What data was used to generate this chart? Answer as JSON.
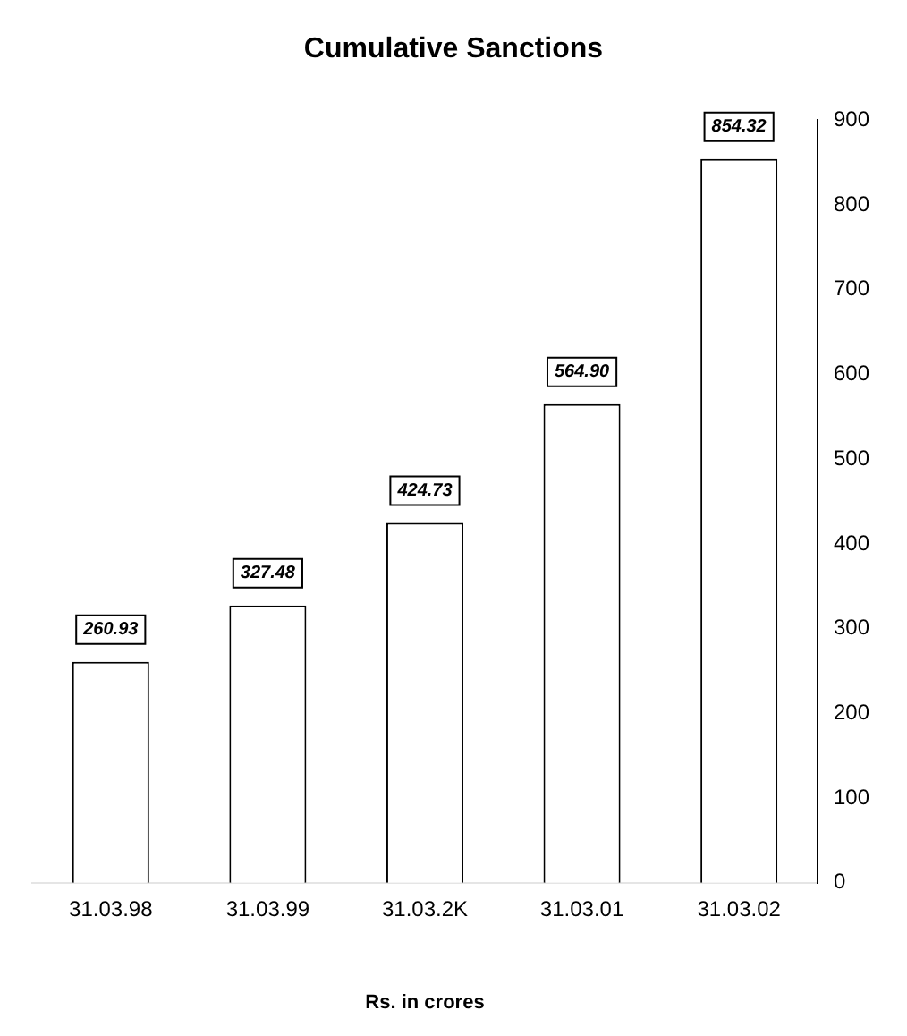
{
  "chart_data": {
    "type": "bar",
    "title": "Cumulative Sanctions",
    "xlabel": "Rs. in crores",
    "categories": [
      "31.03.98",
      "31.03.99",
      "31.03.2K",
      "31.03.01",
      "31.03.02"
    ],
    "values": [
      260.93,
      327.48,
      424.73,
      564.9,
      854.32
    ],
    "value_labels": [
      "260.93",
      "327.48",
      "424.73",
      "564.90",
      "854.32"
    ],
    "color": "#ffffff",
    "ylim": [
      0,
      900
    ],
    "yticks": [
      0,
      100,
      200,
      300,
      400,
      500,
      600,
      700,
      800,
      900
    ],
    "grid": false
  }
}
